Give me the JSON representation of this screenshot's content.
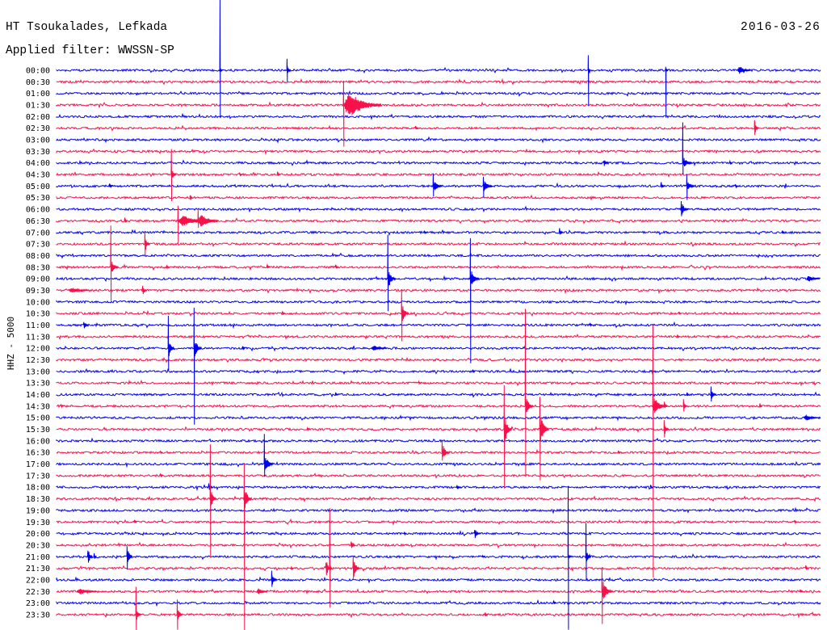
{
  "chart_data": {
    "type": "line",
    "title": "HT Tsoukalades, Lefkada",
    "date": "2016-03-26",
    "subtitle": "Applied filter: WWSSN-SP",
    "ylabel": "HHZ - 5000",
    "grid": false,
    "trace_colors": [
      "#0000f0",
      "#f7104a"
    ],
    "rows": [
      {
        "label": "00:00",
        "events": [
          {
            "min": 6.41,
            "dur": 0.1,
            "amp": 0.3,
            "up": 6.1,
            "down": 4.0
          },
          {
            "min": 9.04,
            "dur": 0.15,
            "amp": 0.5,
            "up": 1.0,
            "down": 1.0
          },
          {
            "min": 20.87,
            "dur": 0.1,
            "amp": 0.3,
            "up": 1.3,
            "down": 3.1
          },
          {
            "min": 23.91,
            "dur": 0.1,
            "amp": 0.3,
            "up": 0.3,
            "down": 4.1
          },
          {
            "min": 26.74,
            "dur": 0.5,
            "amp": 0.4
          }
        ]
      },
      {
        "label": "00:30",
        "events": []
      },
      {
        "label": "01:00",
        "events": []
      },
      {
        "label": "01:30",
        "events": [
          {
            "min": 11.26,
            "dur": 1.5,
            "amp": 1.2,
            "up": 2.1,
            "down": 3.6
          }
        ]
      },
      {
        "label": "02:00",
        "events": []
      },
      {
        "label": "02:30",
        "events": [
          {
            "min": 14.08,
            "dur": 0.1,
            "amp": 0.3
          },
          {
            "min": 27.4,
            "dur": 0.15,
            "amp": 0.6,
            "up": 0.7,
            "down": 0.6
          }
        ]
      },
      {
        "label": "03:00",
        "events": []
      },
      {
        "label": "03:30",
        "events": []
      },
      {
        "label": "04:00",
        "events": [
          {
            "min": 21.47,
            "dur": 0.2,
            "amp": 0.35
          },
          {
            "min": 24.58,
            "dur": 0.4,
            "amp": 0.45,
            "up": 3.5,
            "down": 1.0
          },
          {
            "min": 26.42,
            "dur": 0.1,
            "amp": 0.2
          }
        ]
      },
      {
        "label": "04:30",
        "events": [
          {
            "min": 4.5,
            "dur": 0.2,
            "amp": 0.6,
            "up": 2.2,
            "down": 2.3
          },
          {
            "min": 7.17,
            "dur": 0.1,
            "amp": 0.2
          },
          {
            "min": 8.66,
            "dur": 0.1,
            "amp": 0.35
          }
        ]
      },
      {
        "label": "05:00",
        "events": [
          {
            "min": 2.06,
            "dur": 0.15,
            "amp": 0.25
          },
          {
            "min": 14.78,
            "dur": 0.35,
            "amp": 0.55,
            "up": 1.1,
            "down": 0.9
          },
          {
            "min": 16.75,
            "dur": 0.35,
            "amp": 0.55,
            "up": 0.8,
            "down": 1.0
          },
          {
            "min": 23.72,
            "dur": 0.15,
            "amp": 0.35
          },
          {
            "min": 24.74,
            "dur": 0.3,
            "amp": 0.45,
            "up": 1.0,
            "down": 1.2
          },
          {
            "min": 26.64,
            "dur": 0.1,
            "amp": 0.2
          }
        ]
      },
      {
        "label": "05:30",
        "events": [
          {
            "min": 5.23,
            "dur": 0.1,
            "amp": 0.35
          }
        ]
      },
      {
        "label": "06:00",
        "events": [
          {
            "min": 24.52,
            "dur": 0.3,
            "amp": 0.5,
            "up": 0.7,
            "down": 0.6
          }
        ]
      },
      {
        "label": "06:30",
        "events": [
          {
            "min": 2.66,
            "dur": 0.1,
            "amp": 0.5
          },
          {
            "min": 4.76,
            "dur": 1.4,
            "amp": 0.5,
            "up": 1.3,
            "down": 1.9
          },
          {
            "min": 5.55,
            "dur": 0.8,
            "amp": 0.7,
            "up": 1.0,
            "down": 0.6
          }
        ]
      },
      {
        "label": "07:00",
        "events": [
          {
            "min": 14.43,
            "dur": 0.1,
            "amp": 0.15
          },
          {
            "min": 19.73,
            "dur": 0.15,
            "amp": 0.45
          },
          {
            "min": 28.48,
            "dur": 0.1,
            "amp": 0.25
          }
        ]
      },
      {
        "label": "07:30",
        "events": [
          {
            "min": 3.46,
            "dur": 0.2,
            "amp": 0.6,
            "up": 1.1,
            "down": 1.1
          }
        ]
      },
      {
        "label": "08:00",
        "events": []
      },
      {
        "label": "08:30",
        "events": [
          {
            "min": 2.12,
            "dur": 0.3,
            "amp": 0.7,
            "up": 3.6,
            "down": 2.9
          },
          {
            "min": 4.31,
            "dur": 0.1,
            "amp": 0.2
          },
          {
            "min": 8.25,
            "dur": 0.1,
            "amp": 0.25
          },
          {
            "min": 10.94,
            "dur": 0.1,
            "amp": 0.3
          }
        ]
      },
      {
        "label": "09:00",
        "events": [
          {
            "min": 13.0,
            "dur": 0.3,
            "amp": 0.8,
            "up": 3.8,
            "down": 2.8
          },
          {
            "min": 16.24,
            "dur": 0.35,
            "amp": 0.8,
            "up": 3.5,
            "down": 7.3
          },
          {
            "min": 29.45,
            "dur": 0.5,
            "amp": 0.3
          }
        ]
      },
      {
        "label": "09:30",
        "events": [
          {
            "min": 0.48,
            "dur": 0.8,
            "amp": 0.25
          },
          {
            "min": 3.36,
            "dur": 0.15,
            "amp": 0.6
          }
        ]
      },
      {
        "label": "10:00",
        "events": []
      },
      {
        "label": "10:30",
        "events": [
          {
            "min": 8.85,
            "dur": 0.1,
            "amp": 0.3
          },
          {
            "min": 13.54,
            "dur": 0.3,
            "amp": 0.8,
            "up": 2.1,
            "down": 2.4
          },
          {
            "min": 24.42,
            "dur": 0.1,
            "amp": 0.25
          }
        ]
      },
      {
        "label": "11:00",
        "events": [
          {
            "min": 1.05,
            "dur": 0.2,
            "amp": 0.4
          },
          {
            "min": 20.93,
            "dur": 0.1,
            "amp": 0.25
          }
        ]
      },
      {
        "label": "11:30",
        "events": [
          {
            "min": 24.36,
            "dur": 0.1,
            "amp": 0.25
          }
        ]
      },
      {
        "label": "12:00",
        "events": [
          {
            "min": 4.38,
            "dur": 0.25,
            "amp": 0.9,
            "up": 2.8,
            "down": 1.9
          },
          {
            "min": 5.39,
            "dur": 0.3,
            "amp": 0.9,
            "up": 3.5,
            "down": 6.6
          },
          {
            "min": 7.29,
            "dur": 0.1,
            "amp": 0.35
          },
          {
            "min": 12.37,
            "dur": 0.6,
            "amp": 0.3
          }
        ]
      },
      {
        "label": "12:30",
        "events": []
      },
      {
        "label": "13:00",
        "events": [
          {
            "min": 16.33,
            "dur": 0.1,
            "amp": 0.25
          }
        ]
      },
      {
        "label": "13:30",
        "events": [
          {
            "min": 14.2,
            "dur": 0.1,
            "amp": 0.2
          }
        ]
      },
      {
        "label": "14:00",
        "events": [
          {
            "min": 10.94,
            "dur": 0.1,
            "amp": 0.25
          },
          {
            "min": 24.74,
            "dur": 0.1,
            "amp": 0.3
          },
          {
            "min": 25.69,
            "dur": 0.2,
            "amp": 0.5,
            "up": 0.7,
            "down": 0.6
          }
        ]
      },
      {
        "label": "14:30",
        "events": [
          {
            "min": 0.16,
            "dur": 0.1,
            "amp": 0.2
          },
          {
            "min": 18.4,
            "dur": 0.3,
            "amp": 0.9,
            "up": 8.4,
            "down": 6.1
          },
          {
            "min": 23.41,
            "dur": 0.5,
            "amp": 0.9,
            "up": 7.0,
            "down": 14.8
          },
          {
            "min": 23.85,
            "dur": 0.15,
            "amp": 0.4
          },
          {
            "min": 24.61,
            "dur": 0.15,
            "amp": 0.45,
            "up": 0.6
          },
          {
            "min": 27.6,
            "dur": 0.1,
            "amp": 0.3
          }
        ]
      },
      {
        "label": "15:00",
        "events": [
          {
            "min": 29.34,
            "dur": 0.6,
            "amp": 0.3
          }
        ]
      },
      {
        "label": "15:30",
        "events": [
          {
            "min": 9.83,
            "dur": 0.1,
            "amp": 0.2
          },
          {
            "min": 17.57,
            "dur": 0.3,
            "amp": 1.2,
            "up": 3.8,
            "down": 5.1
          },
          {
            "min": 18.97,
            "dur": 0.35,
            "amp": 1.3,
            "up": 2.8,
            "down": 4.4
          },
          {
            "min": 23.85,
            "dur": 0.2,
            "amp": 0.5,
            "up": 0.8,
            "down": 0.7
          }
        ]
      },
      {
        "label": "16:00",
        "events": []
      },
      {
        "label": "16:30",
        "events": [
          {
            "min": 4.06,
            "dur": 0.1,
            "amp": 0.2
          },
          {
            "min": 15.13,
            "dur": 0.3,
            "amp": 0.7,
            "up": 0.9
          },
          {
            "min": 22.04,
            "dur": 0.1,
            "amp": 0.25
          }
        ]
      },
      {
        "label": "17:00",
        "events": [
          {
            "min": 8.15,
            "dur": 0.35,
            "amp": 0.8,
            "up": 2.6,
            "down": 1.1
          }
        ]
      },
      {
        "label": "17:30",
        "events": [
          {
            "min": 4.06,
            "dur": 0.1,
            "amp": 0.25
          }
        ]
      },
      {
        "label": "18:00",
        "events": [
          {
            "min": 5.96,
            "dur": 0.15,
            "amp": 0.45
          },
          {
            "min": 15.7,
            "dur": 0.2,
            "amp": 0.2
          },
          {
            "min": 23.31,
            "dur": 0.1,
            "amp": 0.3
          }
        ]
      },
      {
        "label": "18:30",
        "events": [
          {
            "min": 6.03,
            "dur": 0.25,
            "amp": 0.8,
            "up": 4.7,
            "down": 5.1
          },
          {
            "min": 7.36,
            "dur": 0.3,
            "amp": 1.0,
            "up": 3.1,
            "down": 11.4
          }
        ]
      },
      {
        "label": "19:00",
        "events": []
      },
      {
        "label": "19:30",
        "events": [
          {
            "min": 3.04,
            "dur": 0.1,
            "amp": 0.35
          },
          {
            "min": 28.96,
            "dur": 0.1,
            "amp": 0.25
          }
        ]
      },
      {
        "label": "20:00",
        "events": [
          {
            "min": 13.64,
            "dur": 0.1,
            "amp": 0.2
          },
          {
            "min": 16.4,
            "dur": 0.2,
            "amp": 0.5
          }
        ]
      },
      {
        "label": "20:30",
        "events": [
          {
            "min": 11.55,
            "dur": 0.15,
            "amp": 0.5
          }
        ]
      },
      {
        "label": "21:00",
        "events": [
          {
            "min": 1.21,
            "dur": 0.2,
            "amp": 0.8
          },
          {
            "min": 1.46,
            "dur": 0.1,
            "amp": 0.5
          },
          {
            "min": 2.76,
            "dur": 0.2,
            "amp": 0.9,
            "down": 1.1
          },
          {
            "min": 16.71,
            "dur": 0.1,
            "amp": 0.2
          },
          {
            "min": 20.08,
            "dur": 0.1,
            "amp": 0.3,
            "up": 6.1,
            "down": 6.3
          },
          {
            "min": 20.78,
            "dur": 0.2,
            "amp": 0.6,
            "up": 2.9,
            "down": 2.0
          }
        ]
      },
      {
        "label": "21:30",
        "events": [
          {
            "min": 9.2,
            "dur": 0.1,
            "amp": 0.25
          },
          {
            "min": 10.56,
            "dur": 0.2,
            "amp": 0.9
          },
          {
            "min": 10.72,
            "dur": 0.1,
            "amp": 0.4,
            "up": 5.2,
            "down": 3.4
          },
          {
            "min": 11.64,
            "dur": 0.25,
            "amp": 0.9,
            "up": 1.1
          },
          {
            "min": 29.4,
            "dur": 0.1,
            "amp": 0.4
          }
        ]
      },
      {
        "label": "22:00",
        "events": [
          {
            "min": 8.44,
            "dur": 0.2,
            "amp": 0.6,
            "up": 0.8
          }
        ]
      },
      {
        "label": "22:30",
        "events": [
          {
            "min": 0.8,
            "dur": 0.8,
            "amp": 0.3
          },
          {
            "min": 7.87,
            "dur": 0.4,
            "amp": 0.3
          },
          {
            "min": 21.41,
            "dur": 0.4,
            "amp": 1.0,
            "up": 2.1,
            "down": 2.8
          },
          {
            "min": 29.18,
            "dur": 0.1,
            "amp": 0.3
          }
        ]
      },
      {
        "label": "23:00",
        "events": [
          {
            "min": 19.5,
            "dur": 0.1,
            "amp": 0.3
          }
        ]
      },
      {
        "label": "23:30",
        "events": [
          {
            "min": 3.11,
            "dur": 0.2,
            "amp": 0.6,
            "up": 2.4,
            "down": 1.4
          },
          {
            "min": 4.73,
            "dur": 0.2,
            "amp": 0.6,
            "up": 1.3,
            "down": 1.3
          },
          {
            "min": 16.81,
            "dur": 0.1,
            "amp": 0.35
          }
        ]
      }
    ]
  }
}
